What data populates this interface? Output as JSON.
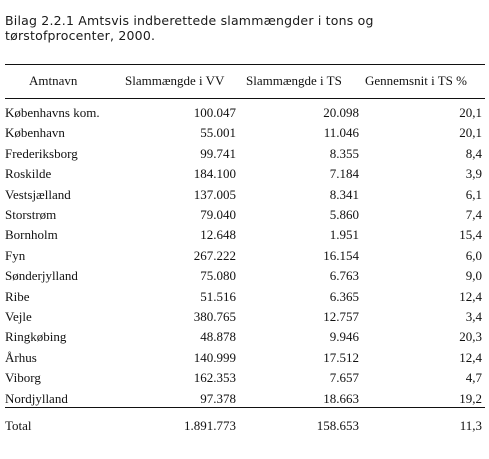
{
  "caption": {
    "line1": "Bilag 2.2.1 Amtsvis indberettede slammængder i tons og",
    "line2": "tørstofprocenter, 2000."
  },
  "table": {
    "headers": [
      "Amtnavn",
      "Slammængde i VV",
      "Slammængde i TS",
      "Gennemsnit i TS %"
    ],
    "rows": [
      [
        "Københavns kom.",
        "100.047",
        "20.098",
        "20,1"
      ],
      [
        "København",
        "55.001",
        "11.046",
        "20,1"
      ],
      [
        "Frederiksborg",
        "99.741",
        "8.355",
        "8,4"
      ],
      [
        "Roskilde",
        "184.100",
        "7.184",
        "3,9"
      ],
      [
        "Vestsjælland",
        "137.005",
        "8.341",
        "6,1"
      ],
      [
        "Storstrøm",
        "79.040",
        "5.860",
        "7,4"
      ],
      [
        "Bornholm",
        "12.648",
        "1.951",
        "15,4"
      ],
      [
        "Fyn",
        "267.222",
        "16.154",
        "6,0"
      ],
      [
        "Sønderjylland",
        "75.080",
        "6.763",
        "9,0"
      ],
      [
        "Ribe",
        "51.516",
        "6.365",
        "12,4"
      ],
      [
        "Vejle",
        "380.765",
        "12.757",
        "3,4"
      ],
      [
        "Ringkøbing",
        "48.878",
        "9.946",
        "20,3"
      ],
      [
        "Århus",
        "140.999",
        "17.512",
        "12,4"
      ],
      [
        "Viborg",
        "162.353",
        "7.657",
        "4,7"
      ],
      [
        "Nordjylland",
        "97.378",
        "18.663",
        "19,2"
      ]
    ],
    "total": [
      "Total",
      "1.891.773",
      "158.653",
      "11,3"
    ]
  }
}
